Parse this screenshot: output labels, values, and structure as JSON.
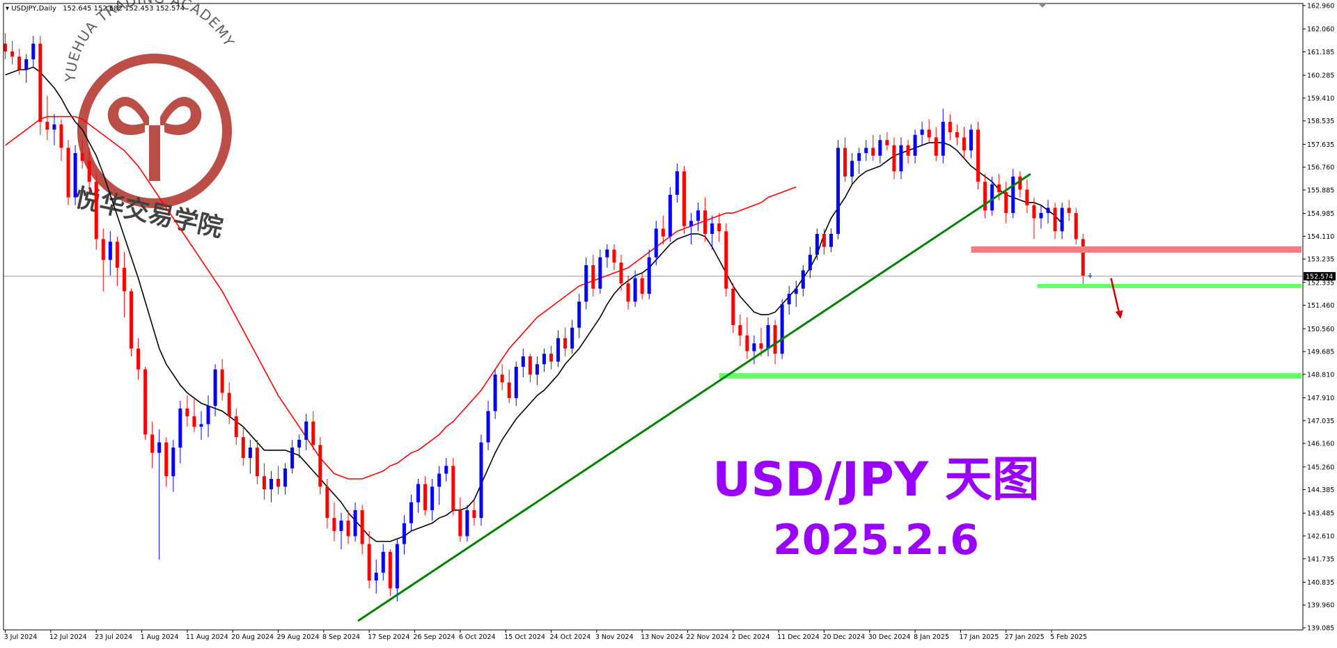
{
  "header": {
    "symbol": "USDJPY,Daily",
    "ohlc": "152.645 152.682 152.453 152.574"
  },
  "watermark": {
    "academy_en": "YUEHUA TRADING ACADEMY",
    "academy_cn": "悦华交易学院"
  },
  "annotation": {
    "title": "USD/JPY 天图",
    "date": "2025.2.6",
    "color": "#9900ff"
  },
  "colors": {
    "bull": "#0000ff",
    "bear": "#ff0000",
    "ma_fast": "#000000",
    "ma_slow": "#ff0000",
    "trendline": "#008000",
    "support": "#66ff66",
    "resistance": "#f08080",
    "arrow": "#cc0000"
  },
  "chart_data": {
    "type": "candlestick",
    "title": "",
    "xlabel": "",
    "ylabel": "",
    "ylim": [
      139.085,
      162.96
    ],
    "current_price": "152.574",
    "x_ticks": [
      "3 Jul 2024",
      "12 Jul 2024",
      "23 Jul 2024",
      "1 Aug 2024",
      "11 Aug 2024",
      "20 Aug 2024",
      "29 Aug 2024",
      "8 Sep 2024",
      "17 Sep 2024",
      "26 Sep 2024",
      "6 Oct 2024",
      "15 Oct 2024",
      "24 Oct 2024",
      "3 Nov 2024",
      "13 Nov 2024",
      "22 Nov 2024",
      "2 Dec 2024",
      "11 Dec 2024",
      "20 Dec 2024",
      "30 Dec 2024",
      "8 Jan 2025",
      "17 Jan 2025",
      "27 Jan 2025",
      "5 Feb 2025"
    ],
    "y_ticks": [
      "162.960",
      "162.060",
      "161.185",
      "160.285",
      "159.410",
      "158.535",
      "157.635",
      "156.760",
      "155.885",
      "154.985",
      "154.110",
      "153.235",
      "152.335",
      "151.460",
      "150.560",
      "149.685",
      "148.810",
      "147.910",
      "147.035",
      "146.160",
      "145.260",
      "144.385",
      "143.485",
      "142.610",
      "141.735",
      "140.835",
      "139.960",
      "139.085"
    ],
    "ohlc": [
      [
        161.5,
        161.9,
        160.9,
        161.2
      ],
      [
        161.2,
        161.6,
        160.7,
        161.0
      ],
      [
        161.0,
        161.3,
        160.3,
        160.5
      ],
      [
        160.5,
        161.1,
        160.0,
        160.9
      ],
      [
        160.9,
        161.8,
        160.6,
        161.5
      ],
      [
        161.5,
        161.8,
        158.0,
        158.5
      ],
      [
        158.5,
        159.5,
        157.8,
        158.2
      ],
      [
        158.2,
        158.8,
        157.6,
        158.4
      ],
      [
        158.4,
        158.6,
        157.0,
        157.5
      ],
      [
        157.5,
        157.8,
        155.3,
        155.6
      ],
      [
        155.6,
        157.6,
        155.3,
        157.3
      ],
      [
        157.3,
        157.8,
        156.7,
        157.0
      ],
      [
        157.0,
        157.5,
        155.8,
        156.2
      ],
      [
        156.2,
        156.5,
        153.6,
        154.0
      ],
      [
        154.0,
        154.4,
        152.0,
        153.2
      ],
      [
        153.2,
        154.3,
        152.6,
        153.9
      ],
      [
        153.9,
        154.1,
        152.2,
        152.9
      ],
      [
        152.9,
        153.5,
        151.0,
        152.0
      ],
      [
        152.0,
        152.1,
        149.5,
        149.8
      ],
      [
        149.8,
        150.2,
        148.6,
        149.0
      ],
      [
        149.0,
        149.1,
        146.3,
        146.5
      ],
      [
        146.5,
        147.0,
        145.2,
        145.8
      ],
      [
        145.8,
        146.7,
        141.7,
        146.2
      ],
      [
        146.2,
        146.4,
        144.5,
        144.9
      ],
      [
        144.9,
        146.3,
        144.3,
        146.0
      ],
      [
        146.0,
        147.8,
        145.4,
        147.5
      ],
      [
        147.5,
        148.0,
        146.8,
        147.2
      ],
      [
        147.2,
        147.9,
        146.6,
        146.8
      ],
      [
        146.8,
        147.4,
        146.3,
        146.9
      ],
      [
        146.9,
        148.0,
        146.4,
        147.6
      ],
      [
        147.6,
        149.2,
        147.2,
        149.0
      ],
      [
        149.0,
        149.4,
        147.8,
        148.1
      ],
      [
        148.1,
        148.5,
        146.9,
        147.2
      ],
      [
        147.2,
        147.5,
        146.1,
        146.4
      ],
      [
        146.4,
        146.8,
        145.3,
        145.6
      ],
      [
        145.6,
        146.3,
        145.0,
        146.0
      ],
      [
        146.0,
        146.3,
        144.6,
        144.9
      ],
      [
        144.9,
        145.4,
        144.0,
        144.4
      ],
      [
        144.4,
        145.1,
        143.9,
        144.8
      ],
      [
        144.8,
        145.3,
        144.2,
        144.5
      ],
      [
        144.5,
        145.4,
        144.2,
        145.2
      ],
      [
        145.2,
        146.3,
        145.0,
        146.0
      ],
      [
        146.0,
        146.5,
        145.6,
        146.3
      ],
      [
        146.3,
        147.3,
        145.9,
        147.0
      ],
      [
        147.0,
        147.4,
        145.9,
        146.1
      ],
      [
        146.1,
        146.4,
        144.2,
        144.5
      ],
      [
        144.5,
        144.8,
        142.9,
        143.3
      ],
      [
        143.3,
        143.9,
        142.4,
        142.8
      ],
      [
        142.8,
        143.5,
        142.1,
        143.2
      ],
      [
        143.2,
        143.6,
        142.3,
        142.6
      ],
      [
        142.6,
        143.9,
        142.4,
        143.6
      ],
      [
        143.6,
        143.8,
        141.9,
        142.3
      ],
      [
        142.3,
        142.8,
        140.6,
        140.9
      ],
      [
        140.9,
        141.7,
        140.4,
        141.2
      ],
      [
        141.2,
        142.3,
        140.9,
        142.0
      ],
      [
        142.0,
        142.1,
        140.3,
        140.6
      ],
      [
        140.6,
        142.5,
        140.1,
        142.3
      ],
      [
        142.3,
        143.4,
        141.9,
        143.1
      ],
      [
        143.1,
        144.2,
        142.8,
        143.9
      ],
      [
        143.9,
        144.8,
        143.5,
        144.6
      ],
      [
        144.6,
        144.9,
        143.4,
        143.6
      ],
      [
        143.6,
        144.8,
        143.2,
        144.5
      ],
      [
        144.5,
        145.3,
        143.8,
        145.0
      ],
      [
        145.0,
        145.6,
        144.7,
        145.3
      ],
      [
        145.3,
        145.6,
        143.4,
        143.6
      ],
      [
        143.6,
        144.1,
        142.4,
        142.6
      ],
      [
        142.6,
        143.8,
        142.4,
        143.6
      ],
      [
        143.6,
        144.0,
        143.0,
        143.3
      ],
      [
        143.3,
        146.5,
        143.0,
        146.2
      ],
      [
        146.2,
        147.8,
        145.9,
        147.4
      ],
      [
        147.4,
        149.0,
        147.1,
        148.8
      ],
      [
        148.8,
        149.2,
        148.2,
        148.5
      ],
      [
        148.5,
        149.0,
        147.7,
        147.9
      ],
      [
        147.9,
        149.3,
        147.6,
        149.1
      ],
      [
        149.1,
        149.8,
        148.7,
        149.5
      ],
      [
        149.5,
        149.6,
        148.5,
        148.8
      ],
      [
        148.8,
        149.5,
        148.4,
        149.2
      ],
      [
        149.2,
        149.8,
        148.9,
        149.6
      ],
      [
        149.6,
        149.9,
        149.0,
        149.3
      ],
      [
        149.3,
        150.5,
        149.1,
        150.2
      ],
      [
        150.2,
        150.6,
        149.5,
        149.8
      ],
      [
        149.8,
        150.9,
        149.6,
        150.6
      ],
      [
        150.6,
        151.9,
        150.2,
        151.6
      ],
      [
        151.6,
        153.3,
        151.3,
        153.0
      ],
      [
        153.0,
        153.4,
        151.8,
        152.1
      ],
      [
        152.1,
        153.6,
        151.9,
        153.3
      ],
      [
        153.3,
        153.8,
        152.9,
        153.6
      ],
      [
        153.6,
        153.8,
        152.8,
        153.1
      ],
      [
        153.1,
        153.4,
        152.0,
        152.3
      ],
      [
        152.3,
        152.6,
        151.3,
        151.6
      ],
      [
        151.6,
        152.8,
        151.4,
        152.5
      ],
      [
        152.5,
        152.7,
        151.7,
        151.9
      ],
      [
        151.9,
        153.6,
        151.7,
        153.3
      ],
      [
        153.3,
        154.7,
        153.0,
        154.4
      ],
      [
        154.4,
        154.9,
        153.8,
        154.1
      ],
      [
        154.1,
        156.0,
        153.9,
        155.7
      ],
      [
        155.7,
        156.9,
        155.4,
        156.6
      ],
      [
        156.6,
        156.8,
        154.2,
        154.5
      ],
      [
        154.5,
        155.0,
        153.8,
        154.7
      ],
      [
        154.7,
        155.4,
        154.3,
        155.1
      ],
      [
        155.1,
        155.6,
        153.9,
        154.2
      ],
      [
        154.2,
        154.9,
        153.6,
        154.6
      ],
      [
        154.6,
        155.0,
        153.9,
        154.3
      ],
      [
        154.3,
        154.6,
        151.8,
        152.1
      ],
      [
        152.1,
        152.3,
        150.4,
        150.7
      ],
      [
        150.7,
        151.1,
        149.9,
        150.3
      ],
      [
        150.3,
        151.0,
        149.4,
        149.7
      ],
      [
        149.7,
        150.3,
        149.2,
        150.0
      ],
      [
        150.0,
        150.6,
        149.5,
        149.8
      ],
      [
        149.8,
        151.0,
        149.5,
        150.7
      ],
      [
        150.7,
        150.9,
        149.2,
        149.6
      ],
      [
        149.6,
        151.7,
        149.4,
        151.5
      ],
      [
        151.5,
        152.2,
        151.1,
        151.9
      ],
      [
        151.9,
        152.4,
        151.4,
        152.1
      ],
      [
        152.1,
        153.0,
        151.8,
        152.8
      ],
      [
        152.8,
        153.7,
        152.5,
        153.4
      ],
      [
        153.4,
        154.4,
        153.2,
        154.2
      ],
      [
        154.2,
        154.4,
        153.4,
        153.7
      ],
      [
        153.7,
        154.4,
        153.5,
        154.2
      ],
      [
        154.2,
        157.8,
        154.0,
        157.5
      ],
      [
        157.5,
        157.9,
        156.2,
        156.4
      ],
      [
        156.4,
        157.3,
        156.1,
        157.0
      ],
      [
        157.0,
        157.5,
        156.5,
        157.3
      ],
      [
        157.3,
        157.8,
        157.0,
        157.5
      ],
      [
        157.5,
        158.0,
        157.0,
        157.2
      ],
      [
        157.2,
        158.0,
        156.9,
        157.8
      ],
      [
        157.8,
        158.1,
        157.4,
        157.6
      ],
      [
        157.6,
        157.9,
        156.3,
        156.6
      ],
      [
        156.6,
        157.9,
        156.3,
        157.6
      ],
      [
        157.6,
        157.8,
        156.9,
        157.2
      ],
      [
        157.2,
        158.2,
        156.9,
        158.0
      ],
      [
        158.0,
        158.5,
        157.6,
        158.2
      ],
      [
        158.2,
        158.6,
        157.7,
        157.9
      ],
      [
        157.9,
        158.3,
        157.0,
        157.2
      ],
      [
        157.2,
        159.0,
        156.9,
        158.5
      ],
      [
        158.5,
        158.8,
        157.8,
        158.1
      ],
      [
        158.1,
        158.4,
        157.6,
        157.9
      ],
      [
        157.9,
        158.3,
        157.1,
        157.4
      ],
      [
        157.4,
        158.4,
        157.1,
        158.2
      ],
      [
        158.2,
        158.5,
        155.9,
        156.2
      ],
      [
        156.2,
        156.5,
        154.8,
        155.1
      ],
      [
        155.1,
        156.4,
        154.9,
        156.1
      ],
      [
        156.1,
        156.5,
        155.5,
        155.8
      ],
      [
        155.8,
        156.2,
        154.6,
        155.0
      ],
      [
        155.0,
        156.7,
        154.8,
        156.4
      ],
      [
        156.4,
        156.6,
        155.6,
        155.9
      ],
      [
        155.9,
        156.3,
        155.0,
        155.3
      ],
      [
        155.3,
        155.6,
        154.0,
        154.8
      ],
      [
        154.8,
        155.3,
        154.4,
        155.0
      ],
      [
        155.0,
        155.5,
        154.6,
        155.2
      ],
      [
        155.2,
        155.4,
        154.0,
        154.3
      ],
      [
        154.3,
        155.4,
        154.0,
        155.2
      ],
      [
        155.2,
        155.5,
        154.7,
        155.0
      ],
      [
        155.0,
        155.2,
        153.8,
        154.0
      ],
      [
        154.0,
        154.2,
        152.2,
        152.6
      ],
      [
        152.6,
        152.7,
        152.5,
        152.6
      ]
    ],
    "series": [
      {
        "type": "ma",
        "color": "#000000",
        "values": [
          160.3,
          160.4,
          160.5,
          160.5,
          160.6,
          160.4,
          160.1,
          159.8,
          159.4,
          158.9,
          158.5,
          158.2,
          157.7,
          157.2,
          156.5,
          155.7,
          154.9,
          154.1,
          153.3,
          152.5,
          151.6,
          150.7,
          149.8,
          149.2,
          148.8,
          148.4,
          148.1,
          147.9,
          147.7,
          147.6,
          147.5,
          147.4,
          147.2,
          147.0,
          146.8,
          146.5,
          146.2,
          145.9,
          145.9,
          145.9,
          145.9,
          145.8,
          145.7,
          145.4,
          145.1,
          144.8,
          144.5,
          144.2,
          143.9,
          143.5,
          143.2,
          142.9,
          142.6,
          142.4,
          142.4,
          142.4,
          142.5,
          142.6,
          142.8,
          142.9,
          143.0,
          143.1,
          143.3,
          143.4,
          143.6,
          143.6,
          143.7,
          144.0,
          144.6,
          145.2,
          145.8,
          146.3,
          146.7,
          147.1,
          147.4,
          147.7,
          148.0,
          148.2,
          148.5,
          148.8,
          149.2,
          149.5,
          149.8,
          150.2,
          150.6,
          151.0,
          151.5,
          151.9,
          152.2,
          152.4,
          152.6,
          152.7,
          152.9,
          153.2,
          153.5,
          153.8,
          154.0,
          154.1,
          154.2,
          154.2,
          154.1,
          153.7,
          153.2,
          152.7,
          152.2,
          151.8,
          151.5,
          151.2,
          151.1,
          151.1,
          151.2,
          151.5,
          151.8,
          152.1,
          152.5,
          152.9,
          153.4,
          154.2,
          154.8,
          155.2,
          155.6,
          156.1,
          156.4,
          156.6,
          156.7,
          156.8,
          157.0,
          157.2,
          157.3,
          157.4,
          157.5,
          157.6,
          157.7,
          157.7,
          157.7,
          157.6,
          157.4,
          157.1,
          156.8,
          156.6,
          156.4,
          156.2,
          155.9,
          155.7,
          155.6,
          155.5,
          155.4,
          155.4,
          155.3,
          155.1,
          154.9,
          154.6
        ]
      },
      {
        "type": "ma",
        "color": "#ff0000",
        "values": [
          157.6,
          157.8,
          158.0,
          158.2,
          158.4,
          158.6,
          158.7,
          158.7,
          158.7,
          158.7,
          158.7,
          158.6,
          158.4,
          158.2,
          158.0,
          157.8,
          157.6,
          157.4,
          157.1,
          156.8,
          156.4,
          156.0,
          155.6,
          155.2,
          154.8,
          154.4,
          154.0,
          153.6,
          153.2,
          152.8,
          152.4,
          152.0,
          151.5,
          151.0,
          150.5,
          150.0,
          149.5,
          149.0,
          148.5,
          148.0,
          147.6,
          147.2,
          146.8,
          146.4,
          146.0,
          145.6,
          145.3,
          145.0,
          144.9,
          144.8,
          144.8,
          144.8,
          144.9,
          145.0,
          145.1,
          145.3,
          145.4,
          145.6,
          145.8,
          145.9,
          146.1,
          146.3,
          146.5,
          146.8,
          147.0,
          147.3,
          147.6,
          147.9,
          148.2,
          148.6,
          149.0,
          149.4,
          149.8,
          150.1,
          150.4,
          150.7,
          151.0,
          151.2,
          151.4,
          151.6,
          151.8,
          152.0,
          152.2,
          152.3,
          152.4,
          152.5,
          152.6,
          152.7,
          152.8,
          152.9,
          153.1,
          153.3,
          153.5,
          153.7,
          153.9,
          154.1,
          154.3,
          154.4,
          154.5,
          154.6,
          154.7,
          154.8,
          154.9,
          155.0,
          155.0,
          155.1,
          155.2,
          155.3,
          155.4,
          155.6,
          155.7,
          155.8,
          155.9,
          156.0
        ]
      }
    ],
    "levels": [
      {
        "kind": "resistance",
        "price": 153.6
      },
      {
        "kind": "support",
        "price": 152.2
      },
      {
        "kind": "support",
        "price": 148.75
      }
    ]
  }
}
